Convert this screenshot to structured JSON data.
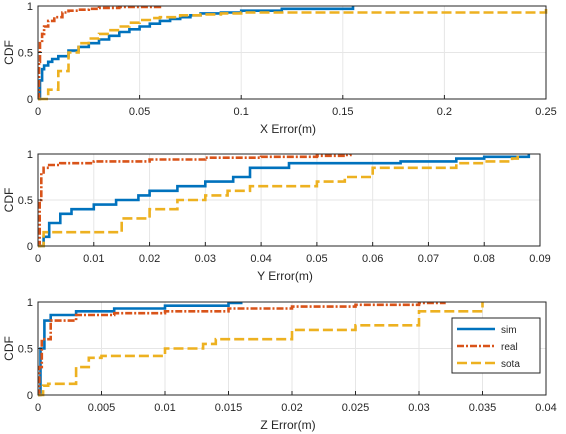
{
  "colors": {
    "sim": "#0072BD",
    "real": "#D95319",
    "sota": "#EDB120",
    "grid": "#e6e6e6",
    "axis": "#262626"
  },
  "legend": {
    "placement": "inside-right (bottom panel)",
    "entries": [
      "sim",
      "real",
      "sota"
    ]
  },
  "chart_data": [
    {
      "type": "line",
      "xlabel": "X Error(m)",
      "ylabel": "CDF",
      "xlim": [
        0,
        0.25
      ],
      "ylim": [
        0,
        1
      ],
      "xticks": [
        "0",
        "0.05",
        "0.1",
        "0.15",
        "0.2",
        "0.25"
      ],
      "yticks": [
        "0",
        "0.5",
        "1"
      ],
      "grid": true,
      "series": [
        {
          "name": "sim",
          "style": "solid",
          "x": [
            0,
            0.001,
            0.002,
            0.003,
            0.005,
            0.007,
            0.01,
            0.015,
            0.02,
            0.025,
            0.03,
            0.035,
            0.04,
            0.045,
            0.05,
            0.055,
            0.06,
            0.065,
            0.07,
            0.075,
            0.08,
            0.09,
            0.1,
            0.12,
            0.155
          ],
          "y": [
            0,
            0.2,
            0.32,
            0.36,
            0.4,
            0.43,
            0.46,
            0.52,
            0.56,
            0.6,
            0.64,
            0.68,
            0.72,
            0.75,
            0.78,
            0.81,
            0.84,
            0.86,
            0.88,
            0.9,
            0.92,
            0.93,
            0.95,
            0.97,
            1.0
          ]
        },
        {
          "name": "real",
          "style": "dashdot",
          "x": [
            0,
            0.0005,
            0.001,
            0.002,
            0.003,
            0.005,
            0.008,
            0.012,
            0.015,
            0.02,
            0.025,
            0.03,
            0.04,
            0.05,
            0.06
          ],
          "y": [
            0,
            0.4,
            0.6,
            0.7,
            0.78,
            0.84,
            0.88,
            0.93,
            0.95,
            0.96,
            0.97,
            0.98,
            0.99,
            0.99,
            1.0
          ]
        },
        {
          "name": "sota",
          "style": "dashed",
          "x": [
            0,
            0.005,
            0.01,
            0.015,
            0.02,
            0.025,
            0.03,
            0.035,
            0.04,
            0.045,
            0.05,
            0.055,
            0.06,
            0.07,
            0.08,
            0.09,
            0.1,
            0.15,
            0.2,
            0.245,
            0.25
          ],
          "y": [
            0,
            0.1,
            0.3,
            0.5,
            0.6,
            0.65,
            0.7,
            0.74,
            0.78,
            0.82,
            0.85,
            0.87,
            0.88,
            0.9,
            0.91,
            0.92,
            0.93,
            0.93,
            0.93,
            0.93,
            1.0
          ]
        }
      ]
    },
    {
      "type": "line",
      "xlabel": "Y Error(m)",
      "ylabel": "CDF",
      "xlim": [
        0,
        0.09
      ],
      "ylim": [
        0,
        1
      ],
      "xticks": [
        "0",
        "0.01",
        "0.02",
        "0.03",
        "0.04",
        "0.05",
        "0.06",
        "0.07",
        "0.08",
        "0.09"
      ],
      "yticks": [
        "0",
        "0.5",
        "1"
      ],
      "grid": true,
      "series": [
        {
          "name": "sim",
          "style": "solid",
          "x": [
            0,
            0.001,
            0.002,
            0.004,
            0.006,
            0.01,
            0.014,
            0.018,
            0.02,
            0.025,
            0.03,
            0.035,
            0.038,
            0.045,
            0.058,
            0.065,
            0.075,
            0.08,
            0.088
          ],
          "y": [
            0,
            0.1,
            0.25,
            0.35,
            0.4,
            0.45,
            0.5,
            0.55,
            0.6,
            0.65,
            0.7,
            0.75,
            0.85,
            0.9,
            0.9,
            0.92,
            0.95,
            0.97,
            1.0
          ]
        },
        {
          "name": "real",
          "style": "dashdot",
          "x": [
            0,
            0.0003,
            0.0006,
            0.001,
            0.002,
            0.004,
            0.01,
            0.02,
            0.03,
            0.04,
            0.05,
            0.055,
            0.056
          ],
          "y": [
            0,
            0.5,
            0.8,
            0.85,
            0.88,
            0.9,
            0.92,
            0.94,
            0.96,
            0.97,
            0.98,
            0.99,
            1.0
          ]
        },
        {
          "name": "sota",
          "style": "dashed",
          "x": [
            0,
            0.001,
            0.01,
            0.015,
            0.02,
            0.025,
            0.03,
            0.034,
            0.038,
            0.05,
            0.055,
            0.06,
            0.075,
            0.08,
            0.085,
            0.086
          ],
          "y": [
            0,
            0.15,
            0.15,
            0.3,
            0.4,
            0.5,
            0.55,
            0.6,
            0.65,
            0.7,
            0.75,
            0.85,
            0.9,
            0.92,
            0.95,
            1.0
          ]
        }
      ]
    },
    {
      "type": "line",
      "xlabel": "Z Error(m)",
      "ylabel": "CDF",
      "xlim": [
        0,
        0.04
      ],
      "ylim": [
        0,
        1
      ],
      "xticks": [
        "0",
        "0.005",
        "0.01",
        "0.015",
        "0.02",
        "0.025",
        "0.03",
        "0.035",
        "0.04"
      ],
      "yticks": [
        "0",
        "0.5",
        "1"
      ],
      "grid": true,
      "series": [
        {
          "name": "sim",
          "style": "solid",
          "x": [
            0,
            0.0002,
            0.0005,
            0.001,
            0.003,
            0.006,
            0.01,
            0.015,
            0.016
          ],
          "y": [
            0,
            0.5,
            0.8,
            0.86,
            0.9,
            0.93,
            0.96,
            0.99,
            1.0
          ]
        },
        {
          "name": "real",
          "style": "dashdot",
          "x": [
            0,
            0.0001,
            0.0003,
            0.001,
            0.003,
            0.006,
            0.01,
            0.015,
            0.02,
            0.025,
            0.03,
            0.032
          ],
          "y": [
            0,
            0.3,
            0.6,
            0.8,
            0.86,
            0.88,
            0.9,
            0.93,
            0.95,
            0.97,
            0.99,
            1.0
          ]
        },
        {
          "name": "sota",
          "style": "dashed",
          "x": [
            0,
            0.0004,
            0.0008,
            0.002,
            0.003,
            0.004,
            0.005,
            0.007,
            0.01,
            0.012,
            0.013,
            0.014,
            0.02,
            0.025,
            0.03,
            0.035
          ],
          "y": [
            0,
            0.1,
            0.12,
            0.12,
            0.3,
            0.4,
            0.42,
            0.42,
            0.5,
            0.5,
            0.55,
            0.6,
            0.7,
            0.75,
            0.9,
            1.0
          ]
        }
      ]
    }
  ]
}
